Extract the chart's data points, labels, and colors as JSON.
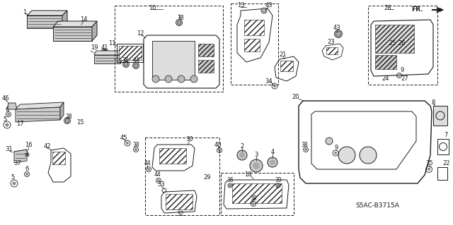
{
  "bg_color": "#ffffff",
  "line_color": "#1a1a1a",
  "diagram_code": "S5AC-B3715A",
  "gray_fill": "#d8d8d8",
  "light_gray": "#e8e8e8"
}
